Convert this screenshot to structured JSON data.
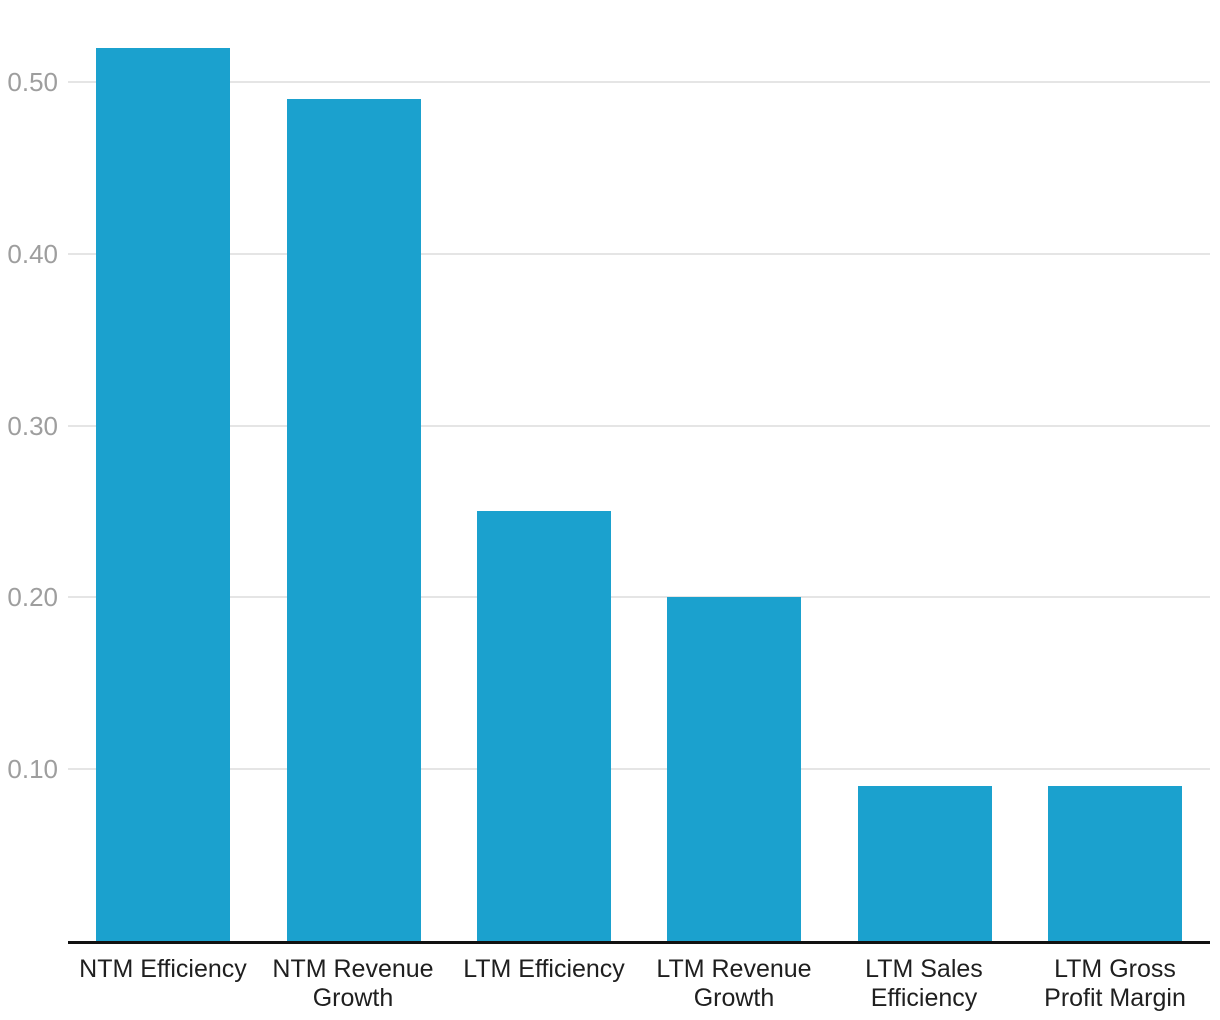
{
  "chart_data": {
    "type": "bar",
    "title": "",
    "xlabel": "",
    "ylabel": "",
    "categories": [
      "NTM Efficiency",
      "NTM Revenue Growth",
      "LTM Efficiency",
      "LTM Revenue Growth",
      "LTM Sales Efficiency",
      "LTM Gross Profit Margin"
    ],
    "category_lines": [
      [
        "NTM Efficiency"
      ],
      [
        "NTM Revenue",
        "Growth"
      ],
      [
        "LTM Efficiency"
      ],
      [
        "LTM Revenue",
        "Growth"
      ],
      [
        "LTM Sales",
        "Efficiency"
      ],
      [
        "LTM Gross",
        "Profit Margin"
      ]
    ],
    "values": [
      0.52,
      0.49,
      0.25,
      0.2,
      0.09,
      0.09
    ],
    "yticks": [
      0.1,
      0.2,
      0.3,
      0.4,
      0.5
    ],
    "ytick_labels": [
      "0.10",
      "0.20",
      "0.30",
      "0.40",
      "0.50"
    ],
    "ylim": [
      0,
      0.55
    ],
    "grid": true,
    "legend": "none"
  },
  "colors": {
    "bar": "#1BA1CE",
    "gridline": "#e5e5e5",
    "ytick_text": "#9e9e9e",
    "xtick_text": "#1f1f1f",
    "axis_line": "#111111",
    "background": "#ffffff"
  }
}
